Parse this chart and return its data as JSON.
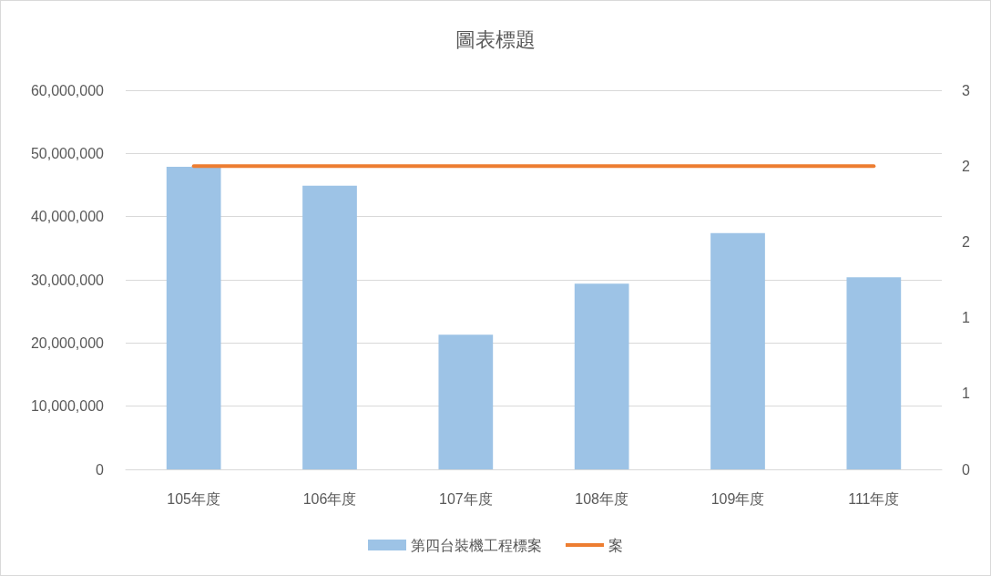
{
  "chart_data": {
    "type": "bar",
    "title": "圖表標題",
    "categories": [
      "105年度",
      "106年度",
      "107年度",
      "108年度",
      "109年度",
      "111年度"
    ],
    "series": [
      {
        "name": "第四台裝機工程標案",
        "color": "#9dc3e6",
        "values": [
          47900000,
          44900000,
          21300000,
          29400000,
          37400000,
          30400000
        ]
      },
      {
        "name": "案",
        "type": "line",
        "axis": "y2",
        "color": "#ed7d31",
        "marker": "none",
        "line_style": "solid",
        "values": [
          2.4,
          2.4,
          2.4,
          2.4,
          2.4,
          2.4
        ]
      }
    ],
    "ylim": [
      0,
      60000000
    ],
    "yticks": [
      0,
      {
        "value": 10000000,
        "label": "10,000,000"
      },
      {
        "value": 20000000,
        "label": "20,000,000"
      },
      {
        "value": 30000000,
        "label": "30,000,000"
      },
      {
        "value": 40000000,
        "label": "40,000,000"
      },
      {
        "value": 50000000,
        "label": "50,000,000"
      },
      {
        "value": 60000000,
        "label": "60,000,000"
      }
    ],
    "y2lim": [
      0,
      3
    ],
    "y2ticks": [
      0,
      {
        "value": 0.6,
        "label": "1"
      },
      {
        "value": 1.2,
        "label": "1"
      },
      {
        "value": 1.8,
        "label": "2"
      },
      {
        "value": 2.4,
        "label": "2"
      },
      3
    ],
    "grid": "y",
    "legend": "bottom"
  }
}
